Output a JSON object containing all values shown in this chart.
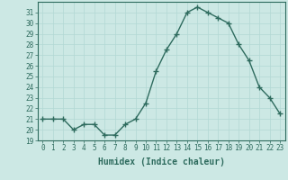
{
  "x": [
    0,
    1,
    2,
    3,
    4,
    5,
    6,
    7,
    8,
    9,
    10,
    11,
    12,
    13,
    14,
    15,
    16,
    17,
    18,
    19,
    20,
    21,
    22,
    23
  ],
  "y": [
    21,
    21,
    21,
    20,
    20.5,
    20.5,
    19.5,
    19.5,
    20.5,
    21,
    22.5,
    25.5,
    27.5,
    29,
    31,
    31.5,
    31,
    30.5,
    30,
    28,
    26.5,
    24,
    23,
    21.5
  ],
  "line_color": "#2e6b5e",
  "marker": "+",
  "marker_size": 4,
  "bg_color": "#cce8e4",
  "grid_color": "#b2d8d4",
  "xlabel": "Humidex (Indice chaleur)",
  "xlabel_fontsize": 7,
  "ylim": [
    19,
    32
  ],
  "xlim": [
    -0.5,
    23.5
  ],
  "yticks": [
    19,
    20,
    21,
    22,
    23,
    24,
    25,
    26,
    27,
    28,
    29,
    30,
    31
  ],
  "xticks": [
    0,
    1,
    2,
    3,
    4,
    5,
    6,
    7,
    8,
    9,
    10,
    11,
    12,
    13,
    14,
    15,
    16,
    17,
    18,
    19,
    20,
    21,
    22,
    23
  ],
  "tick_fontsize": 5.5,
  "line_width": 1.0,
  "spine_color": "#2e6b5e",
  "tick_color": "#2e6b5e",
  "label_color": "#2e6b5e"
}
